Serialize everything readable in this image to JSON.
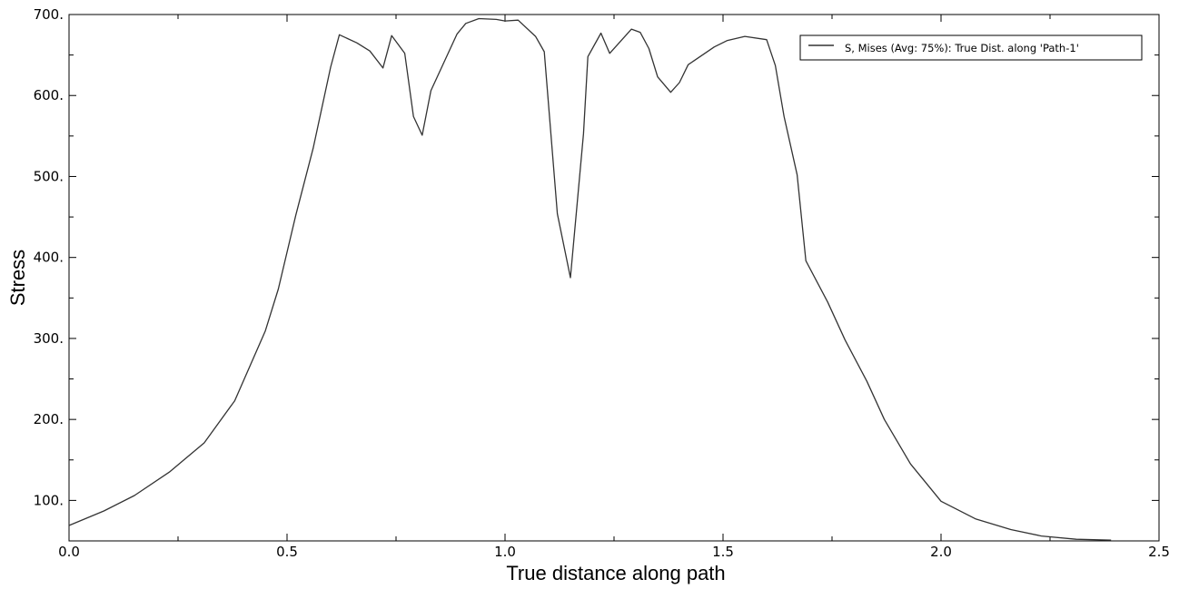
{
  "chart_data": {
    "type": "line",
    "xlabel": "True distance along path",
    "ylabel": "Stress",
    "xlim": [
      0.0,
      2.5
    ],
    "ylim": [
      50,
      700
    ],
    "x_ticks": [
      "0.0",
      "0.5",
      "1.0",
      "1.5",
      "2.0",
      "2.5"
    ],
    "y_ticks": [
      "100.",
      "200.",
      "300.",
      "400.",
      "500.",
      "600.",
      "700."
    ],
    "grid": false,
    "legend_position": "top-right",
    "line_color": "#333333",
    "series": [
      {
        "name": "S, Mises (Avg: 75%): True Dist. along 'Path-1'",
        "x": [
          0.0,
          0.08,
          0.15,
          0.23,
          0.31,
          0.38,
          0.45,
          0.48,
          0.52,
          0.56,
          0.6,
          0.62,
          0.66,
          0.69,
          0.72,
          0.74,
          0.77,
          0.79,
          0.81,
          0.83,
          0.86,
          0.89,
          0.91,
          0.94,
          0.98,
          1.0,
          1.03,
          1.07,
          1.09,
          1.12,
          1.15,
          1.18,
          1.19,
          1.22,
          1.24,
          1.29,
          1.31,
          1.33,
          1.35,
          1.38,
          1.4,
          1.42,
          1.48,
          1.51,
          1.55,
          1.6,
          1.62,
          1.64,
          1.67,
          1.69,
          1.74,
          1.78,
          1.83,
          1.87,
          1.93,
          2.0,
          2.08,
          2.16,
          2.23,
          2.31,
          2.39
        ],
        "y": [
          69,
          87,
          106,
          135,
          171,
          223,
          309,
          361,
          452,
          535,
          635,
          675,
          665,
          655,
          634,
          674,
          652,
          574,
          551,
          606,
          641,
          676,
          689,
          695,
          694,
          692,
          693,
          673,
          654,
          454,
          375,
          553,
          648,
          677,
          652,
          682,
          678,
          658,
          623,
          604,
          616,
          638,
          660,
          668,
          673,
          669,
          637,
          574,
          502,
          396,
          345,
          298,
          247,
          200,
          145,
          99,
          77,
          64,
          56,
          52,
          51
        ]
      }
    ]
  }
}
